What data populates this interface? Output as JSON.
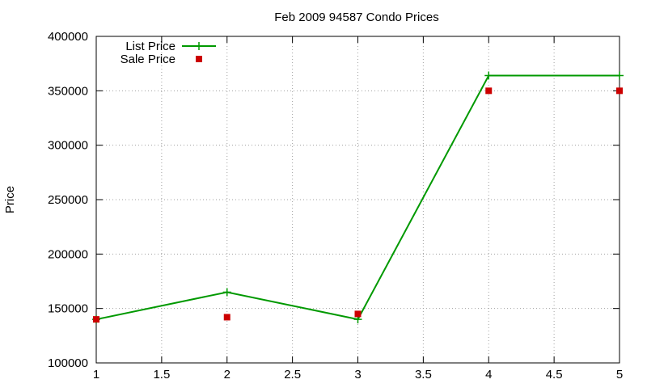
{
  "chart_data": {
    "type": "line",
    "title": "Feb 2009 94587 Condo Prices",
    "xlabel": "",
    "ylabel": "Price",
    "xlim": [
      1,
      5
    ],
    "ylim": [
      100000,
      400000
    ],
    "x_ticks": [
      "1",
      "1.5",
      "2",
      "2.5",
      "3",
      "3.5",
      "4",
      "4.5",
      "5"
    ],
    "y_ticks": [
      "100000",
      "150000",
      "200000",
      "250000",
      "300000",
      "350000",
      "400000"
    ],
    "grid": true,
    "legend_position": "top-left",
    "series": [
      {
        "name": "List Price",
        "style": "line-with-plus-markers",
        "color": "#009900",
        "x": [
          1,
          2,
          3,
          4,
          5
        ],
        "y": [
          140000,
          165000,
          140000,
          364000,
          364000
        ]
      },
      {
        "name": "Sale Price",
        "style": "square-points",
        "color": "#cc0000",
        "x": [
          1,
          2,
          3,
          4,
          5
        ],
        "y": [
          140000,
          142000,
          145000,
          350000,
          350000
        ]
      }
    ]
  }
}
